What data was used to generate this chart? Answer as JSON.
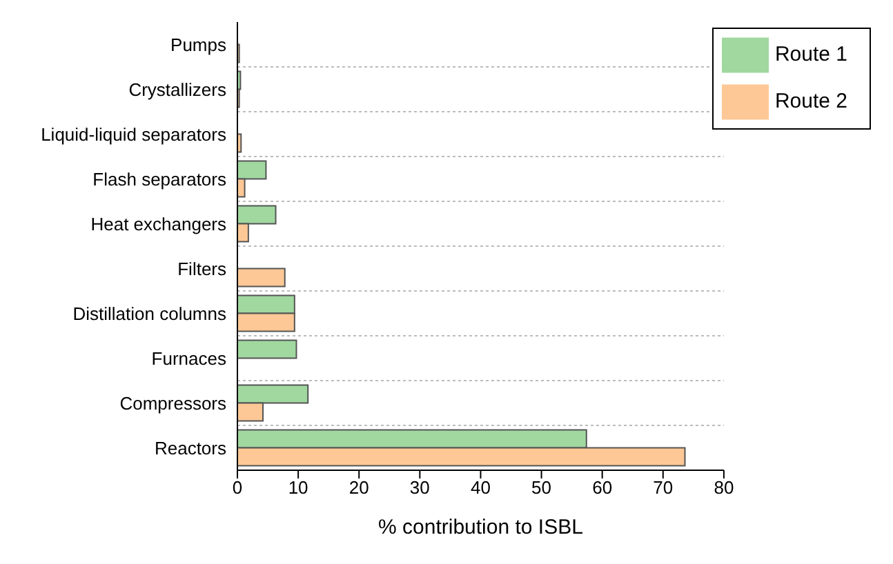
{
  "chart_data": {
    "type": "bar",
    "orientation": "horizontal",
    "xlabel": "% contribution to ISBL",
    "categories": [
      "Pumps",
      "Crystallizers",
      "Liquid-liquid separators",
      "Flash separators",
      "Heat exchangers",
      "Filters",
      "Distillation columns",
      "Furnaces",
      "Compressors",
      "Reactors"
    ],
    "series": [
      {
        "name": "Route 1",
        "color": "#a0d8a0",
        "values": [
          null,
          0.5,
          null,
          4.7,
          6.3,
          null,
          9.4,
          9.7,
          11.6,
          57.4
        ]
      },
      {
        "name": "Route 2",
        "color": "#fdc896",
        "values": [
          0.3,
          0.3,
          0.6,
          1.2,
          1.8,
          7.8,
          9.4,
          null,
          4.2,
          73.6
        ]
      }
    ],
    "xlim": [
      0,
      80
    ],
    "xticks": [
      0,
      10,
      20,
      30,
      40,
      50,
      60,
      70,
      80
    ],
    "grid": "y",
    "legend": "top right"
  }
}
